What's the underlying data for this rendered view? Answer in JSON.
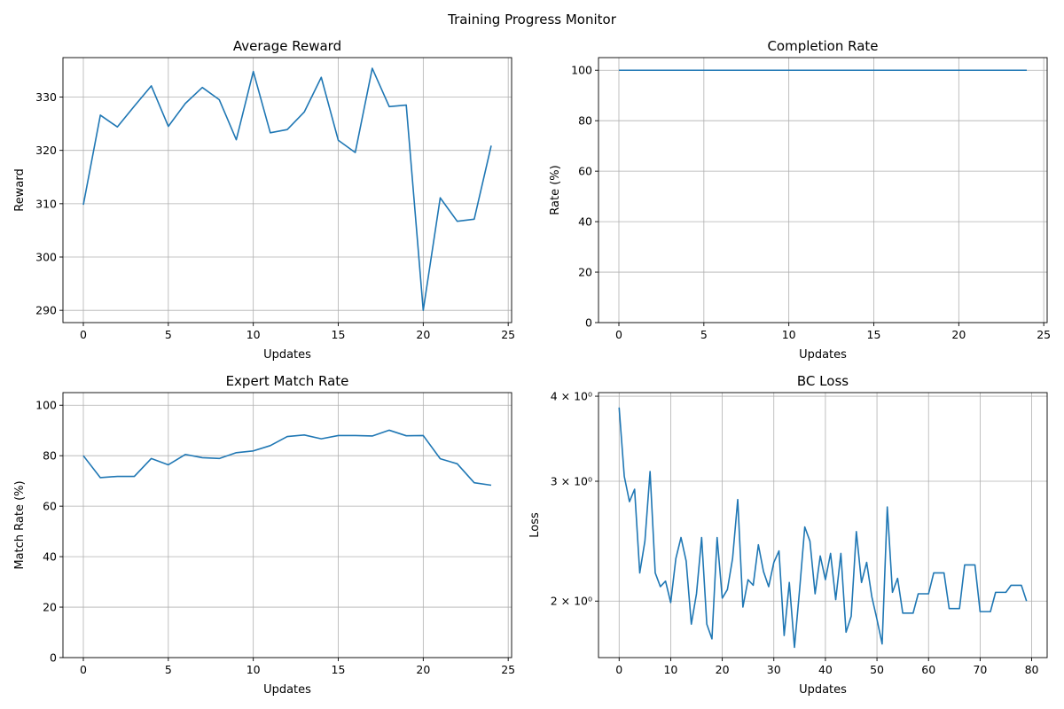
{
  "figure": {
    "suptitle": "Training Progress Monitor",
    "line_color": "#1f77b4",
    "grid_color": "#b0b0b0"
  },
  "chart_data": [
    {
      "type": "line",
      "title": "Average Reward",
      "xlabel": "Updates",
      "ylabel": "Reward",
      "grid": true,
      "xlim": [
        -1.2,
        25.2
      ],
      "ylim": [
        287.7,
        337.4
      ],
      "yscale": "linear",
      "xticks": [
        0,
        5,
        10,
        15,
        20,
        25
      ],
      "xtick_labels": [
        "0",
        "5",
        "10",
        "15",
        "20",
        "25"
      ],
      "yticks": [
        290,
        300,
        310,
        320,
        330
      ],
      "ytick_labels": [
        "290",
        "300",
        "310",
        "320",
        "330"
      ],
      "x": [
        0,
        1,
        2,
        3,
        4,
        5,
        6,
        7,
        8,
        9,
        10,
        11,
        12,
        13,
        14,
        15,
        16,
        17,
        18,
        19,
        20,
        21,
        22,
        23,
        24
      ],
      "y": [
        309.8,
        326.6,
        324.4,
        328.3,
        332.1,
        324.5,
        328.8,
        331.8,
        329.5,
        322.0,
        334.8,
        323.3,
        323.9,
        327.2,
        333.7,
        321.9,
        319.6,
        335.4,
        328.2,
        328.5,
        290.0,
        311.1,
        306.7,
        307.1,
        320.9
      ]
    },
    {
      "type": "line",
      "title": "Completion Rate",
      "xlabel": "Updates",
      "ylabel": "Rate (%)",
      "grid": true,
      "xlim": [
        -1.2,
        25.2
      ],
      "ylim": [
        0,
        105
      ],
      "yscale": "linear",
      "xticks": [
        0,
        5,
        10,
        15,
        20,
        25
      ],
      "xtick_labels": [
        "0",
        "5",
        "10",
        "15",
        "20",
        "25"
      ],
      "yticks": [
        0,
        20,
        40,
        60,
        80,
        100
      ],
      "ytick_labels": [
        "0",
        "20",
        "40",
        "60",
        "80",
        "100"
      ],
      "x": [
        0,
        1,
        2,
        3,
        4,
        5,
        6,
        7,
        8,
        9,
        10,
        11,
        12,
        13,
        14,
        15,
        16,
        17,
        18,
        19,
        20,
        21,
        22,
        23,
        24
      ],
      "y": [
        100,
        100,
        100,
        100,
        100,
        100,
        100,
        100,
        100,
        100,
        100,
        100,
        100,
        100,
        100,
        100,
        100,
        100,
        100,
        100,
        100,
        100,
        100,
        100,
        100
      ]
    },
    {
      "type": "line",
      "title": "Expert Match Rate",
      "xlabel": "Updates",
      "ylabel": "Match Rate (%)",
      "grid": true,
      "xlim": [
        -1.2,
        25.2
      ],
      "ylim": [
        0,
        105
      ],
      "yscale": "linear",
      "xticks": [
        0,
        5,
        10,
        15,
        20,
        25
      ],
      "xtick_labels": [
        "0",
        "5",
        "10",
        "15",
        "20",
        "25"
      ],
      "yticks": [
        0,
        20,
        40,
        60,
        80,
        100
      ],
      "ytick_labels": [
        "0",
        "20",
        "40",
        "60",
        "80",
        "100"
      ],
      "x": [
        0,
        1,
        2,
        3,
        4,
        5,
        6,
        7,
        8,
        9,
        10,
        11,
        12,
        13,
        14,
        15,
        16,
        17,
        18,
        19,
        20,
        21,
        22,
        23,
        24
      ],
      "y": [
        80.0,
        71.3,
        71.8,
        71.8,
        78.9,
        76.4,
        80.5,
        79.2,
        78.9,
        81.2,
        81.9,
        84.0,
        87.6,
        88.2,
        86.7,
        88.0,
        88.0,
        87.8,
        90.1,
        87.9,
        88.0,
        78.8,
        76.8,
        69.3,
        68.3
      ]
    },
    {
      "type": "line",
      "title": "BC Loss",
      "xlabel": "Updates",
      "ylabel": "Loss",
      "grid": true,
      "xlim": [
        -4,
        83
      ],
      "ylim": [
        1.652,
        4.049
      ],
      "yscale": "log",
      "xticks": [
        0,
        10,
        20,
        30,
        40,
        50,
        60,
        70,
        80
      ],
      "xtick_labels": [
        "0",
        "10",
        "20",
        "30",
        "40",
        "50",
        "60",
        "70",
        "80"
      ],
      "yticks": [
        2,
        3,
        4
      ],
      "ytick_labels": [
        "2 × 10⁰",
        "3 × 10⁰",
        "4 × 10⁰"
      ],
      "x": [
        0,
        1,
        2,
        3,
        4,
        5,
        6,
        7,
        8,
        9,
        10,
        11,
        12,
        13,
        14,
        15,
        16,
        17,
        18,
        19,
        20,
        21,
        22,
        23,
        24,
        25,
        26,
        27,
        28,
        29,
        30,
        31,
        32,
        33,
        34,
        35,
        36,
        37,
        38,
        39,
        40,
        41,
        42,
        43,
        44,
        45,
        46,
        47,
        48,
        49,
        50,
        51,
        52,
        53,
        54,
        55,
        56,
        57,
        58,
        59,
        60,
        61,
        62,
        63,
        64,
        65,
        66,
        67,
        68,
        69,
        70,
        71,
        72,
        73,
        74,
        75,
        76,
        77,
        78,
        79
      ],
      "y": [
        3.85,
        3.05,
        2.8,
        2.92,
        2.2,
        2.45,
        3.1,
        2.2,
        2.1,
        2.14,
        1.99,
        2.31,
        2.48,
        2.29,
        1.85,
        2.05,
        2.48,
        1.85,
        1.76,
        2.48,
        2.02,
        2.08,
        2.31,
        2.82,
        1.96,
        2.15,
        2.11,
        2.42,
        2.21,
        2.1,
        2.28,
        2.37,
        1.78,
        2.13,
        1.71,
        2.08,
        2.57,
        2.45,
        2.05,
        2.33,
        2.15,
        2.35,
        2.01,
        2.35,
        1.8,
        1.9,
        2.53,
        2.13,
        2.28,
        2.03,
        1.88,
        1.73,
        2.75,
        2.06,
        2.16,
        1.92,
        1.92,
        1.92,
        2.05,
        2.05,
        2.05,
        2.2,
        2.2,
        2.2,
        1.95,
        1.95,
        1.95,
        2.26,
        2.26,
        2.26,
        1.93,
        1.93,
        1.93,
        2.06,
        2.06,
        2.06,
        2.11,
        2.11,
        2.11,
        2.0
      ]
    }
  ]
}
